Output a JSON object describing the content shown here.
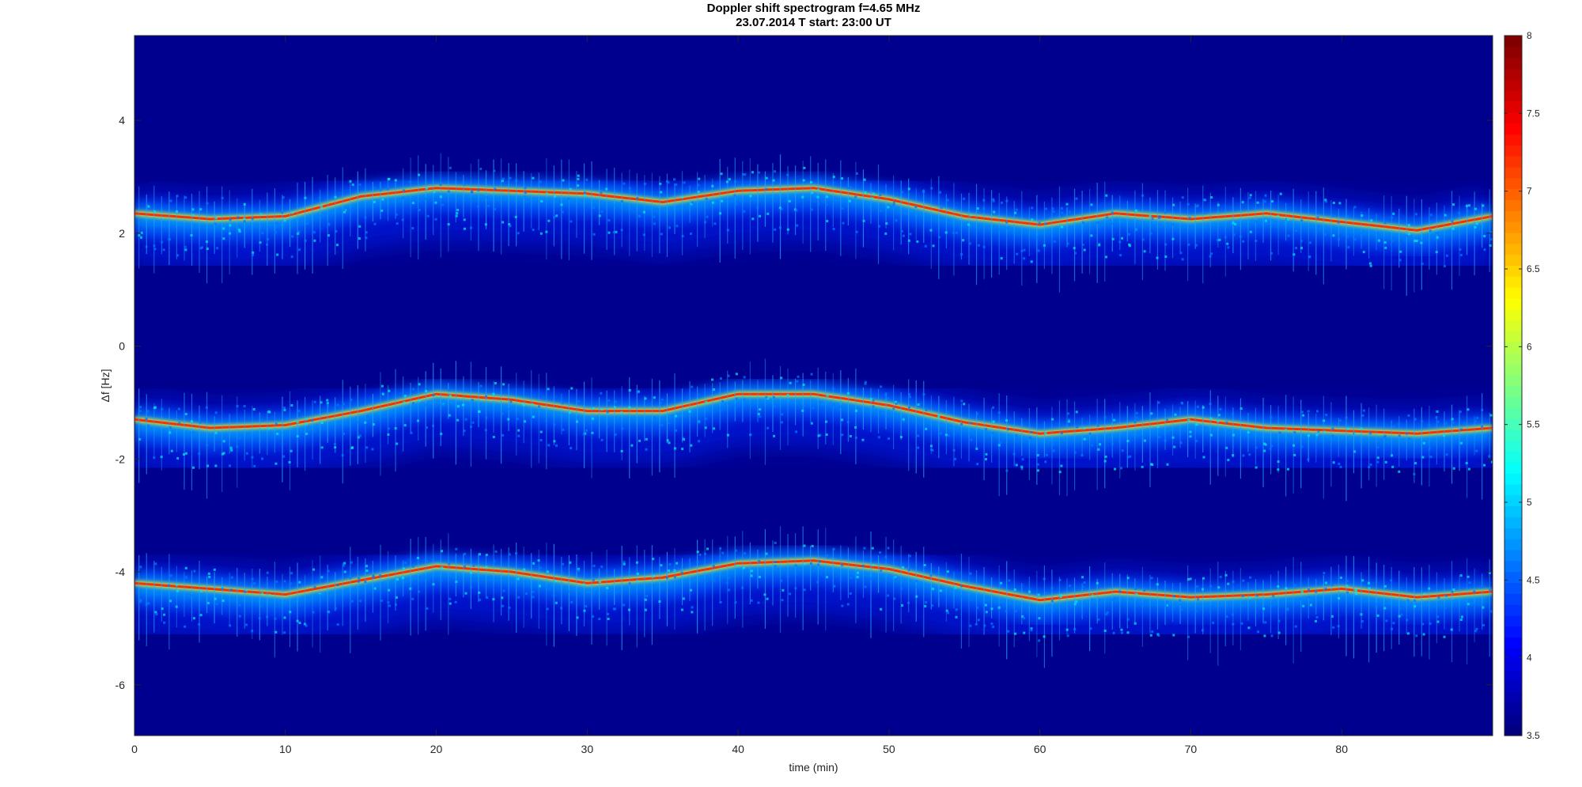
{
  "chart_data": {
    "type": "heatmap",
    "title": "Doppler shift spectrogram f=4.65 MHz",
    "subtitle": "23.07.2014   T start: 23:00 UT",
    "xlabel": "time (min)",
    "ylabel": "Δf [Hz]",
    "xlim": [
      0,
      90
    ],
    "ylim": [
      -6.9,
      5.5
    ],
    "xticks": [
      0,
      10,
      20,
      30,
      40,
      50,
      60,
      70,
      80
    ],
    "yticks": [
      4,
      2,
      0,
      -2,
      -4,
      -6
    ],
    "colorbar": {
      "colormap": "jet",
      "clim": [
        3.5,
        8
      ],
      "ticks": [
        8,
        7.5,
        7,
        6.5,
        6,
        5.5,
        5,
        4.5,
        4,
        3.5
      ]
    },
    "background_color": "#00008f",
    "series": [
      {
        "x": [
          0,
          5,
          10,
          15,
          20,
          25,
          30,
          35,
          40,
          45,
          50,
          55,
          60,
          65,
          70,
          75,
          80,
          85,
          90
        ],
        "y": [
          2.35,
          2.25,
          2.3,
          2.65,
          2.8,
          2.75,
          2.7,
          2.55,
          2.75,
          2.8,
          2.6,
          2.3,
          2.15,
          2.35,
          2.25,
          2.35,
          2.2,
          2.05,
          2.3
        ]
      },
      {
        "x": [
          0,
          5,
          10,
          15,
          20,
          25,
          30,
          35,
          40,
          45,
          50,
          55,
          60,
          65,
          70,
          75,
          80,
          85,
          90
        ],
        "y": [
          -1.3,
          -1.45,
          -1.4,
          -1.15,
          -0.85,
          -0.95,
          -1.15,
          -1.15,
          -0.85,
          -0.85,
          -1.05,
          -1.35,
          -1.55,
          -1.45,
          -1.3,
          -1.45,
          -1.5,
          -1.55,
          -1.45
        ]
      },
      {
        "x": [
          0,
          5,
          10,
          15,
          20,
          25,
          30,
          35,
          40,
          45,
          50,
          55,
          60,
          65,
          70,
          75,
          80,
          85,
          90
        ],
        "y": [
          -4.2,
          -4.3,
          -4.4,
          -4.15,
          -3.9,
          -4.0,
          -4.2,
          -4.1,
          -3.85,
          -3.8,
          -3.95,
          -4.25,
          -4.5,
          -4.35,
          -4.45,
          -4.4,
          -4.3,
          -4.45,
          -4.35
        ]
      }
    ]
  }
}
